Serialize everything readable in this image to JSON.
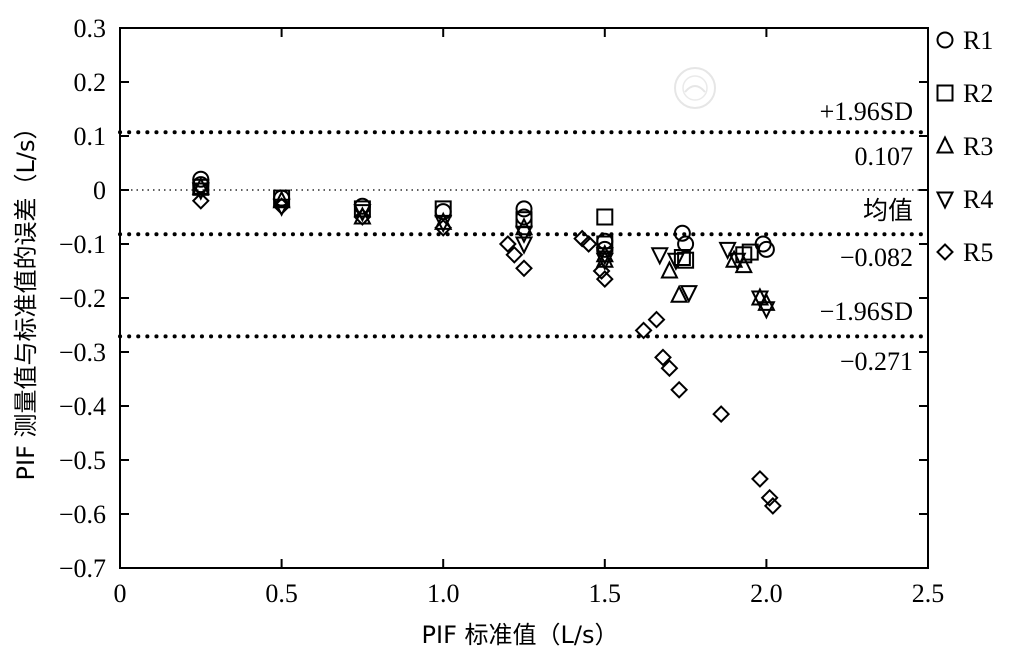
{
  "chart_data": {
    "type": "scatter",
    "xlabel": "PIF 标准值（L/s）",
    "ylabel": "PIF 测量值与标准值的误差（L/s）",
    "xlim": [
      0,
      2.5
    ],
    "ylim": [
      -0.7,
      0.3
    ],
    "x_ticks": [
      "0",
      "0.5",
      "1.0",
      "1.5",
      "2.0",
      "2.5"
    ],
    "x_tick_values": [
      0,
      0.5,
      1.0,
      1.5,
      2.0,
      2.5
    ],
    "y_ticks": [
      "0.3",
      "0.2",
      "0.1",
      "0",
      "−0.1",
      "−0.2",
      "−0.3",
      "−0.4",
      "−0.5",
      "−0.6",
      "−0.7"
    ],
    "y_tick_values": [
      0.3,
      0.2,
      0.1,
      0,
      -0.1,
      -0.2,
      -0.3,
      -0.4,
      -0.5,
      -0.6,
      -0.7
    ],
    "grid": false,
    "legend_position": "right",
    "zero_line": {
      "y": 0,
      "style": "dotted"
    },
    "reference_lines": [
      {
        "y": 0.107,
        "label": "+1.96SD",
        "value_text": "0.107"
      },
      {
        "y": -0.082,
        "label": "均值",
        "value_text": "−0.082"
      },
      {
        "y": -0.271,
        "label": "−1.96SD",
        "value_text": "−0.271"
      }
    ],
    "series": [
      {
        "name": "R1",
        "marker": "circle",
        "x": [
          0.25,
          0.25,
          0.5,
          0.75,
          1.0,
          1.25,
          1.25,
          1.5,
          1.5,
          1.74,
          1.75,
          1.99,
          2.0
        ],
        "y": [
          0.02,
          0.01,
          -0.015,
          -0.03,
          -0.04,
          -0.035,
          -0.05,
          -0.095,
          -0.11,
          -0.08,
          -0.1,
          -0.1,
          -0.11
        ]
      },
      {
        "name": "R2",
        "marker": "square",
        "x": [
          0.25,
          0.5,
          0.75,
          1.0,
          1.25,
          1.5,
          1.5,
          1.74,
          1.75,
          1.93,
          1.95
        ],
        "y": [
          0.005,
          -0.015,
          -0.035,
          -0.035,
          -0.055,
          -0.05,
          -0.1,
          -0.125,
          -0.13,
          -0.12,
          -0.115
        ]
      },
      {
        "name": "R3",
        "marker": "triangle-up",
        "x": [
          0.25,
          0.5,
          0.75,
          1.0,
          1.25,
          1.5,
          1.5,
          1.7,
          1.73,
          1.9,
          1.93,
          1.98,
          2.0
        ],
        "y": [
          0.005,
          -0.02,
          -0.05,
          -0.06,
          -0.07,
          -0.12,
          -0.13,
          -0.15,
          -0.195,
          -0.13,
          -0.14,
          -0.2,
          -0.21
        ]
      },
      {
        "name": "R4",
        "marker": "triangle-down",
        "x": [
          0.25,
          0.5,
          0.75,
          1.0,
          1.25,
          1.25,
          1.5,
          1.5,
          1.67,
          1.72,
          1.76,
          1.88,
          1.91,
          1.98,
          2.0
        ],
        "y": [
          0.0,
          -0.03,
          -0.04,
          -0.06,
          -0.08,
          -0.1,
          -0.12,
          -0.13,
          -0.12,
          -0.13,
          -0.19,
          -0.11,
          -0.13,
          -0.2,
          -0.22
        ]
      },
      {
        "name": "R5",
        "marker": "diamond",
        "x": [
          0.25,
          0.5,
          0.75,
          1.0,
          1.2,
          1.22,
          1.25,
          1.43,
          1.45,
          1.49,
          1.5,
          1.62,
          1.66,
          1.68,
          1.7,
          1.73,
          1.86,
          1.98,
          2.01,
          2.02
        ],
        "y": [
          -0.02,
          -0.03,
          -0.05,
          -0.07,
          -0.1,
          -0.12,
          -0.145,
          -0.09,
          -0.1,
          -0.15,
          -0.165,
          -0.26,
          -0.24,
          -0.31,
          -0.33,
          -0.37,
          -0.415,
          -0.535,
          -0.57,
          -0.585
        ]
      }
    ]
  }
}
